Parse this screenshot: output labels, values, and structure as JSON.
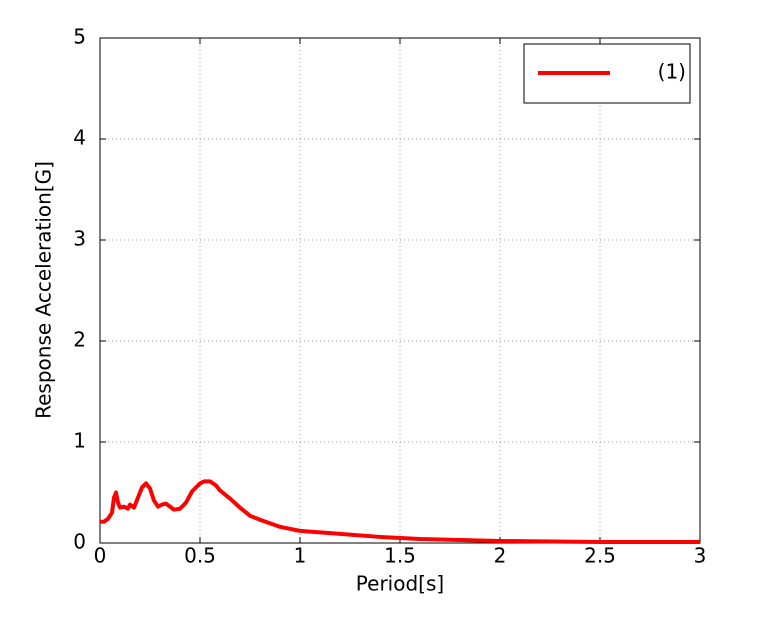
{
  "chart_data": {
    "type": "line",
    "xlabel": "Period[s]",
    "ylabel": "Response Acceleration[G]",
    "x": [
      0,
      0.02,
      0.04,
      0.06,
      0.07,
      0.08,
      0.09,
      0.1,
      0.12,
      0.14,
      0.15,
      0.17,
      0.19,
      0.21,
      0.23,
      0.25,
      0.27,
      0.29,
      0.31,
      0.33,
      0.35,
      0.37,
      0.4,
      0.43,
      0.46,
      0.5,
      0.52,
      0.55,
      0.58,
      0.6,
      0.65,
      0.7,
      0.75,
      0.8,
      0.9,
      1.0,
      1.2,
      1.4,
      1.6,
      1.8,
      2.0,
      2.5,
      3.0
    ],
    "series": [
      {
        "name": "(1)",
        "color": "#ff0000",
        "values": [
          0.21,
          0.21,
          0.24,
          0.3,
          0.45,
          0.5,
          0.4,
          0.35,
          0.36,
          0.34,
          0.38,
          0.35,
          0.45,
          0.55,
          0.59,
          0.54,
          0.42,
          0.36,
          0.38,
          0.39,
          0.36,
          0.33,
          0.34,
          0.4,
          0.51,
          0.59,
          0.61,
          0.61,
          0.57,
          0.52,
          0.44,
          0.35,
          0.27,
          0.23,
          0.16,
          0.12,
          0.09,
          0.06,
          0.04,
          0.03,
          0.02,
          0.01,
          0.01
        ]
      }
    ],
    "xlim": [
      0,
      3
    ],
    "xticks": [
      0,
      0.5,
      1,
      1.5,
      2,
      2.5,
      3
    ],
    "ylim": [
      0,
      5
    ],
    "yticks": [
      0,
      1,
      2,
      3,
      4,
      5
    ],
    "grid": true,
    "legend": "upper right"
  }
}
